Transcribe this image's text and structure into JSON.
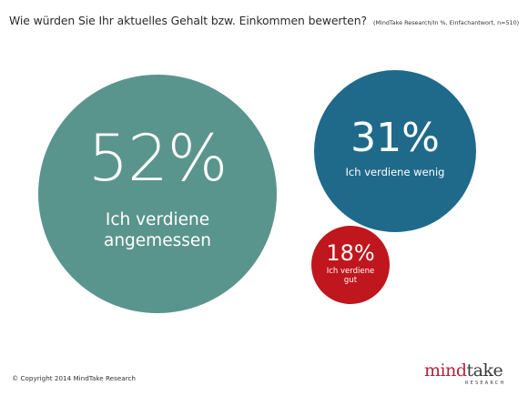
{
  "header": {
    "title": "Wie würden Sie Ihr aktuelles Gehalt bzw. Einkommen bewerten?",
    "subtitle": "(MindTake Research/In %, Einfachantwort, n=510)"
  },
  "colors": {
    "large": "#5a958d",
    "medium": "#1f6a8b",
    "small": "#c0161d"
  },
  "chart_data": {
    "type": "bubble",
    "title": "Wie würden Sie Ihr aktuelles Gehalt bzw. Einkommen bewerten?",
    "subtitle": "(MindTake Research/In %, Einfachantwort, n=510)",
    "unit": "%",
    "data": [
      {
        "label": "Ich verdiene\nangemessen",
        "value": 52,
        "value_label": "52%",
        "color": "#5a958d"
      },
      {
        "label": "Ich verdiene wenig",
        "value": 31,
        "value_label": "31%",
        "color": "#1f6a8b"
      },
      {
        "label": "Ich verdiene\ngut",
        "value": 18,
        "value_label": "18%",
        "color": "#c0161d"
      }
    ]
  },
  "footer": {
    "copyright": "© Copyright 2014 MindTake Research"
  },
  "logo": {
    "word_part1": "mind",
    "word_part2": "take",
    "sub": "RESEARCH"
  }
}
